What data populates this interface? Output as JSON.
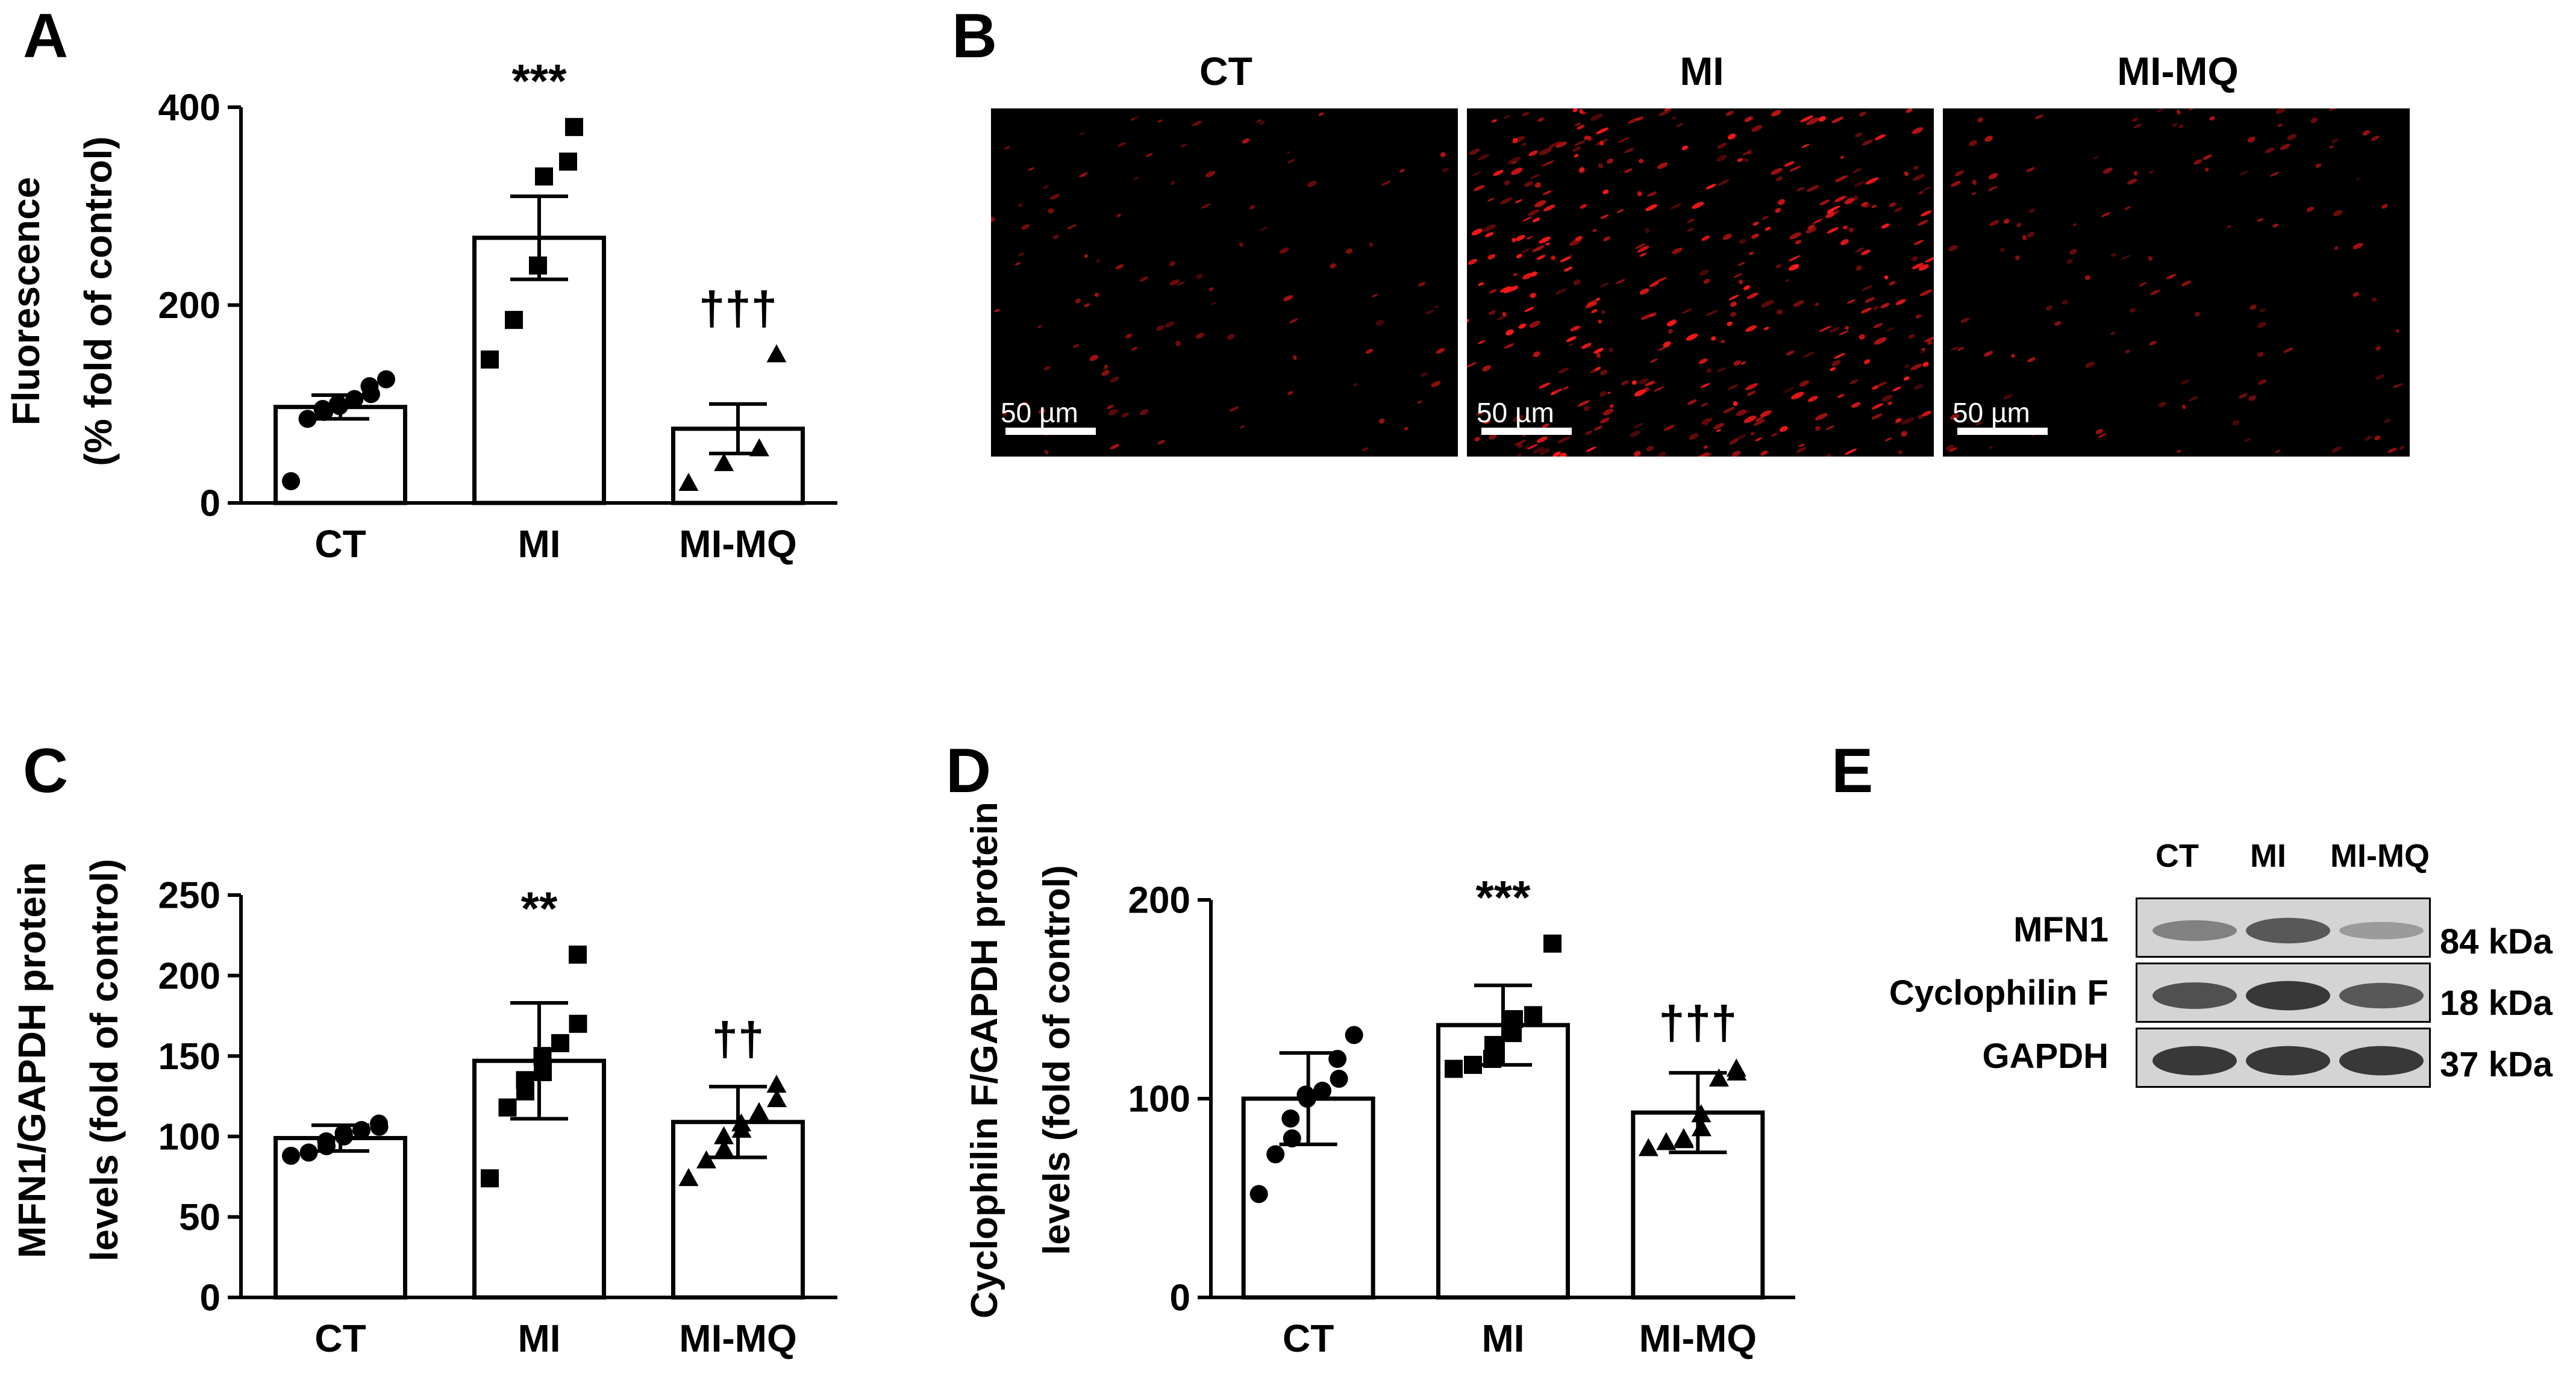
{
  "panels": {
    "A": "A",
    "B": "B",
    "C": "C",
    "D": "D",
    "E": "E"
  },
  "chart_data": [
    {
      "id": "A",
      "type": "bar",
      "categories": [
        "CT",
        "MI",
        "MI-MQ"
      ],
      "values": [
        97,
        268,
        75
      ],
      "errors": [
        12,
        42,
        25
      ],
      "ylabel_lines": [
        "Fluorescence",
        "(% fold of control)"
      ],
      "ylim": [
        0,
        400
      ],
      "yticks": [
        0,
        200,
        400
      ],
      "error_style": "sem-up",
      "points": [
        [
          22,
          85,
          92,
          95,
          98,
          100,
          105,
          110,
          118,
          125
        ],
        [
          145,
          185,
          240,
          330,
          345,
          380
        ],
        [
          20,
          40,
          55,
          150
        ]
      ],
      "markers": [
        "circle",
        "square",
        "triangle"
      ],
      "significance": [
        "",
        "***",
        "†††"
      ]
    },
    {
      "id": "C",
      "type": "bar",
      "categories": [
        "CT",
        "MI",
        "MI-MQ"
      ],
      "values": [
        99,
        147,
        109
      ],
      "errors": [
        8,
        36,
        22
      ],
      "ylabel_lines": [
        "MFN1/GAPDH protein",
        "levels (fold of control)"
      ],
      "ylim": [
        0,
        250
      ],
      "yticks": [
        0,
        50,
        100,
        150,
        200,
        250
      ],
      "error_style": "sd-both",
      "points": [
        [
          88,
          90,
          94,
          97,
          100,
          102,
          104,
          106,
          108
        ],
        [
          74,
          118,
          128,
          135,
          140,
          150,
          158,
          170,
          213
        ],
        [
          74,
          85,
          92,
          100,
          104,
          108,
          115,
          123,
          132
        ]
      ],
      "markers": [
        "circle",
        "square",
        "triangle"
      ],
      "significance": [
        "",
        "**",
        "††"
      ]
    },
    {
      "id": "D",
      "type": "bar",
      "categories": [
        "CT",
        "MI",
        "MI-MQ"
      ],
      "values": [
        100,
        137,
        93
      ],
      "errors": [
        23,
        20,
        20
      ],
      "ylabel_lines": [
        "Cyclophilin F/GAPDH protein",
        "levels (fold of control)"
      ],
      "ylim": [
        0,
        200
      ],
      "yticks": [
        0,
        100,
        200
      ],
      "error_style": "sd-both",
      "points": [
        [
          52,
          72,
          80,
          90,
          100,
          102,
          104,
          110,
          120,
          132
        ],
        [
          115,
          117,
          120,
          127,
          133,
          140,
          142,
          178
        ],
        [
          75,
          78,
          79,
          80,
          85,
          92,
          110,
          113,
          115
        ]
      ],
      "markers": [
        "circle",
        "square",
        "triangle"
      ],
      "significance": [
        "",
        "***",
        "†††"
      ]
    }
  ],
  "micrographs": {
    "titles": [
      "CT",
      "MI",
      "MI-MQ"
    ],
    "scale_label": "50 µm",
    "density": [
      0.25,
      1.0,
      0.3
    ],
    "spot_color": "#ff1a1a"
  },
  "western_blot": {
    "lanes": [
      "CT",
      "MI",
      "MI-MQ"
    ],
    "rows": [
      {
        "label": "MFN1",
        "kda": "84 kDa",
        "intensity": [
          0.45,
          0.7,
          0.28
        ]
      },
      {
        "label": "Cyclophilin F",
        "kda": "18 kDa",
        "intensity": [
          0.75,
          0.9,
          0.7
        ]
      },
      {
        "label": "GAPDH",
        "kda": "37 kDa",
        "intensity": [
          0.9,
          0.9,
          0.9
        ]
      }
    ]
  }
}
